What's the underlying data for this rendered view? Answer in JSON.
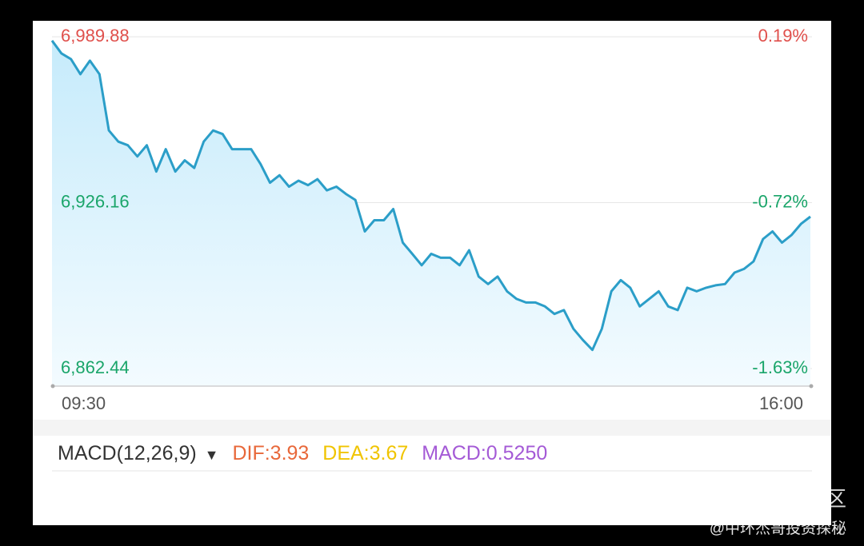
{
  "chart_data": {
    "type": "line",
    "categories": [
      "09:30",
      null,
      null,
      null,
      null,
      null,
      null,
      null,
      null,
      null,
      null,
      null,
      null,
      null,
      null,
      null,
      null,
      null,
      null,
      null,
      null,
      null,
      null,
      null,
      null,
      null,
      null,
      null,
      null,
      null,
      null,
      null,
      null,
      null,
      null,
      null,
      null,
      null,
      null,
      null,
      null,
      null,
      null,
      null,
      null,
      null,
      null,
      null,
      null,
      null,
      null,
      null,
      null,
      null,
      null,
      null,
      null,
      null,
      null,
      null,
      null,
      null,
      null,
      null,
      null,
      null,
      null,
      null,
      null,
      null,
      null,
      null,
      null,
      null,
      null,
      null,
      null,
      null,
      null,
      null,
      "16:00"
    ],
    "values": [
      6988.4,
      6983.5,
      6981.3,
      6975.5,
      6980.7,
      6975.5,
      6953.9,
      6949.6,
      6948.2,
      6943.9,
      6948.2,
      6938.1,
      6946.7,
      6938.1,
      6942.4,
      6939.5,
      6949.6,
      6953.9,
      6952.5,
      6946.7,
      6946.7,
      6946.7,
      6941.0,
      6933.8,
      6936.7,
      6932.3,
      6934.6,
      6932.9,
      6935.2,
      6930.9,
      6932.3,
      6929.5,
      6927.2,
      6915.1,
      6919.4,
      6919.4,
      6923.7,
      6910.8,
      6906.5,
      6902.1,
      6906.5,
      6905.0,
      6905.0,
      6902.1,
      6907.9,
      6897.8,
      6894.9,
      6897.8,
      6892.1,
      6889.2,
      6887.8,
      6887.8,
      6886.3,
      6883.4,
      6884.9,
      6877.7,
      6873.4,
      6869.6,
      6877.7,
      6892.1,
      6896.4,
      6893.5,
      6886.3,
      6889.2,
      6892.1,
      6886.3,
      6884.9,
      6893.5,
      6892.1,
      6893.5,
      6894.4,
      6894.9,
      6899.3,
      6900.7,
      6903.6,
      6912.2,
      6915.1,
      6910.8,
      6913.7,
      6918.0,
      6920.8
    ],
    "color": "#2b9ec8",
    "ylim": [
      6862.44,
      6989.88
    ],
    "yticks": [
      {
        "value": 6989.88,
        "label": "6,989.88"
      },
      {
        "value": 6926.16,
        "label": "6,926.16"
      },
      {
        "value": 6862.44,
        "label": "6,862.44"
      }
    ],
    "y2lim": [
      -1.63,
      0.19
    ],
    "y2ticks": [
      {
        "value": 0.19,
        "label": "0.19%"
      },
      {
        "value": -0.72,
        "label": "-0.72%"
      },
      {
        "value": -1.63,
        "label": "-1.63%"
      }
    ],
    "grid": true
  },
  "macd_header": {
    "label": "MACD(12,26,9)",
    "dif": "DIF:3.93",
    "dea": "DEA:3.67",
    "macd": "MACD:0.5250"
  },
  "watermark": {
    "logo": "老虎社区",
    "author": "@中环杰哥投资探秘"
  }
}
